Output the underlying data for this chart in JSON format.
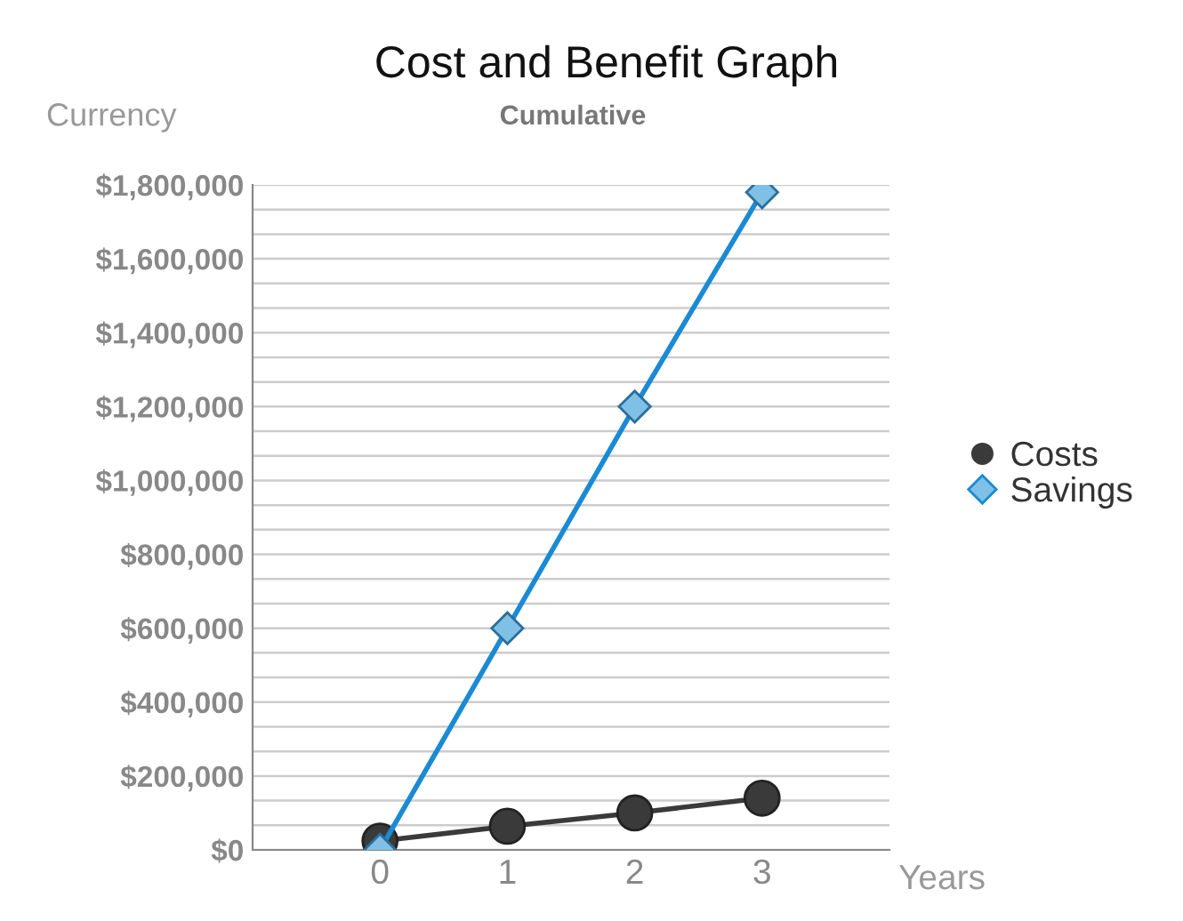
{
  "chart_data": {
    "type": "line",
    "title": "Cost and Benefit Graph",
    "subtitle": "Cumulative",
    "ylabel": "Currency",
    "xlabel": "Years",
    "x": [
      0,
      1,
      2,
      3
    ],
    "xlim": [
      -1,
      4
    ],
    "xticks": [
      0,
      1,
      2,
      3
    ],
    "ylim": [
      0,
      1800000
    ],
    "yticks": [
      {
        "value": 0,
        "label": "$0"
      },
      {
        "value": 66667,
        "label": null
      },
      {
        "value": 133333,
        "label": null
      },
      {
        "value": 200000,
        "label": "$200,000"
      },
      {
        "value": 266667,
        "label": null
      },
      {
        "value": 333333,
        "label": null
      },
      {
        "value": 400000,
        "label": "$400,000"
      },
      {
        "value": 466667,
        "label": null
      },
      {
        "value": 533333,
        "label": null
      },
      {
        "value": 600000,
        "label": "$600,000"
      },
      {
        "value": 666667,
        "label": null
      },
      {
        "value": 733333,
        "label": null
      },
      {
        "value": 800000,
        "label": "$800,000"
      },
      {
        "value": 866667,
        "label": null
      },
      {
        "value": 933333,
        "label": null
      },
      {
        "value": 1000000,
        "label": "$1,000,000"
      },
      {
        "value": 1066667,
        "label": null
      },
      {
        "value": 1133333,
        "label": null
      },
      {
        "value": 1200000,
        "label": "$1,200,000"
      },
      {
        "value": 1266667,
        "label": null
      },
      {
        "value": 1333333,
        "label": null
      },
      {
        "value": 1400000,
        "label": "$1,400,000"
      },
      {
        "value": 1466667,
        "label": null
      },
      {
        "value": 1533333,
        "label": null
      },
      {
        "value": 1600000,
        "label": "$1,600,000"
      },
      {
        "value": 1666667,
        "label": null
      },
      {
        "value": 1733333,
        "label": null
      },
      {
        "value": 1800000,
        "label": "$1,800,000"
      }
    ],
    "grid": "y",
    "legend": "right",
    "series": [
      {
        "name": "Costs",
        "color": "#3a3a3a",
        "marker": "circle",
        "values": [
          24000,
          64000,
          100000,
          140000
        ]
      },
      {
        "name": "Savings",
        "color": "#1a8ad4",
        "marker": "diamond",
        "values": [
          0,
          600000,
          1200000,
          1780000
        ]
      }
    ]
  }
}
